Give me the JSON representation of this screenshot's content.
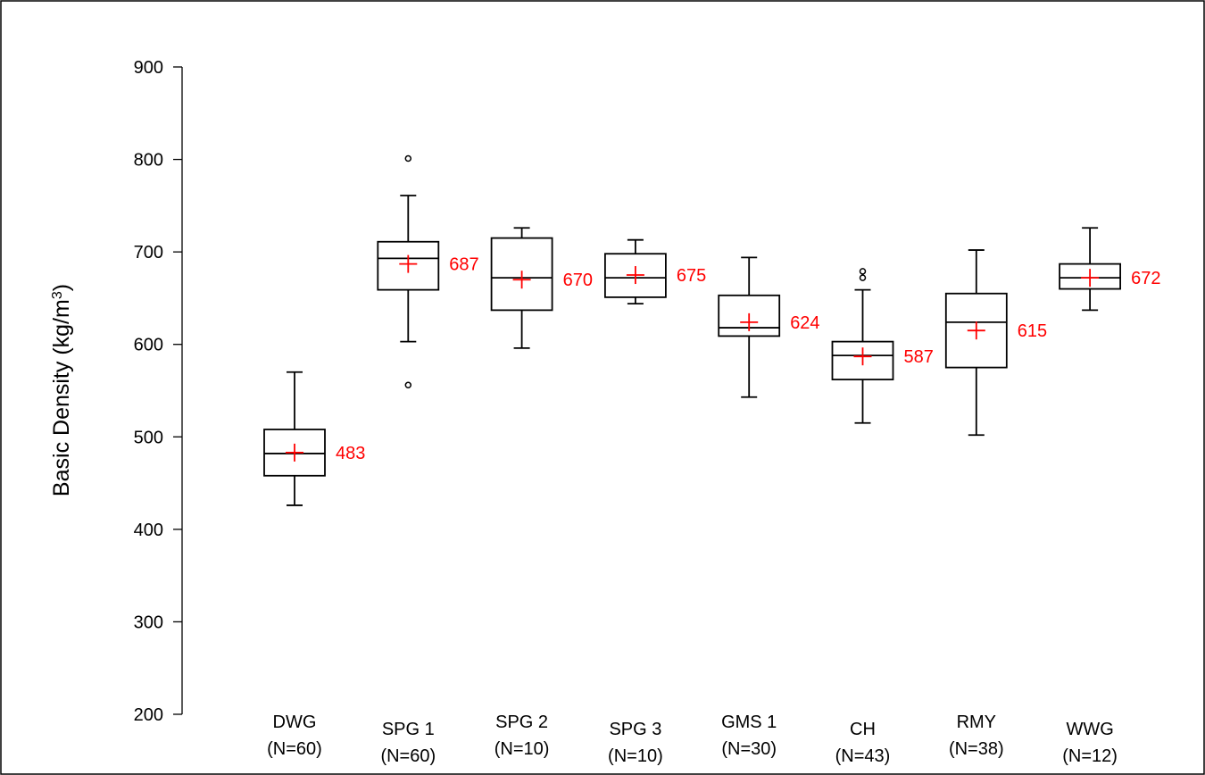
{
  "chart_data": {
    "type": "box",
    "title": "",
    "xlabel": "",
    "ylabel": "Basic Density (kg/m",
    "ylabel_superscript": "3",
    "ylabel_suffix": ")",
    "ylim": [
      200,
      900
    ],
    "yticks": [
      200,
      300,
      400,
      500,
      600,
      700,
      800,
      900
    ],
    "grid": false,
    "colors": {
      "box": "#000000",
      "mean": "#ff0000"
    },
    "categories": [
      {
        "name": "DWG",
        "n": "(N=60)",
        "min": 426,
        "q1": 458,
        "median": 482,
        "q3": 508,
        "max": 570,
        "mean": 483,
        "outliers": []
      },
      {
        "name": "SPG 1",
        "n": "(N=60)",
        "min": 603,
        "q1": 659,
        "median": 693,
        "q3": 711,
        "max": 761,
        "mean": 687,
        "outliers": [
          801,
          556
        ]
      },
      {
        "name": "SPG 2",
        "n": "(N=10)",
        "min": 596,
        "q1": 637,
        "median": 672,
        "q3": 715,
        "max": 726,
        "mean": 670,
        "outliers": []
      },
      {
        "name": "SPG 3",
        "n": "(N=10)",
        "min": 644,
        "q1": 651,
        "median": 672,
        "q3": 698,
        "max": 713,
        "mean": 675,
        "outliers": []
      },
      {
        "name": "GMS 1",
        "n": "(N=30)",
        "min": 543,
        "q1": 609,
        "median": 618,
        "q3": 653,
        "max": 694,
        "mean": 624,
        "outliers": []
      },
      {
        "name": "CH",
        "n": "(N=43)",
        "min": 515,
        "q1": 562,
        "median": 588,
        "q3": 603,
        "max": 659,
        "mean": 587,
        "outliers": [
          672,
          679
        ]
      },
      {
        "name": "RMY",
        "n": "(N=38)",
        "min": 502,
        "q1": 575,
        "median": 624,
        "q3": 655,
        "max": 702,
        "mean": 615,
        "outliers": []
      },
      {
        "name": "WWG",
        "n": "(N=12)",
        "min": 637,
        "q1": 660,
        "median": 672,
        "q3": 687,
        "max": 726,
        "mean": 672,
        "outliers": []
      }
    ]
  }
}
